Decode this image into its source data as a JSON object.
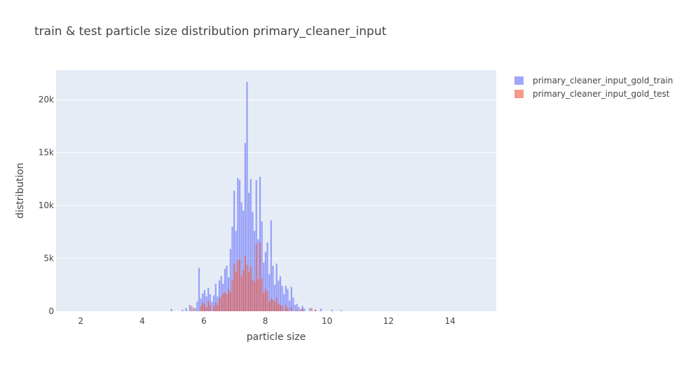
{
  "chart_data": {
    "type": "histogram-overlay",
    "title": "train & test particle size distribution primary_cleaner_input",
    "xlabel": "particle size",
    "ylabel": "distribution",
    "xlim": [
      1.2,
      15.5
    ],
    "ylim": [
      0,
      22800
    ],
    "x_ticks": [
      2,
      4,
      6,
      8,
      10,
      12,
      14
    ],
    "x_tick_labels": [
      "2",
      "4",
      "6",
      "8",
      "10",
      "12",
      "14"
    ],
    "y_ticks": [
      0,
      5000,
      10000,
      15000,
      20000
    ],
    "y_tick_labels": [
      "0",
      "5k",
      "10k",
      "15k",
      "20k"
    ],
    "grid": true,
    "legend": "top-right-outside",
    "bin_width": 0.06,
    "bar_opacity": 0.6,
    "series": [
      {
        "name": "primary_cleaner_input_gold_train",
        "color": "#636efa",
        "bins": [
          [
            4.92,
            200
          ],
          [
            5.28,
            150
          ],
          [
            5.4,
            300
          ],
          [
            5.52,
            600
          ],
          [
            5.64,
            300
          ],
          [
            5.76,
            900
          ],
          [
            5.82,
            4100
          ],
          [
            5.88,
            1200
          ],
          [
            5.94,
            1700
          ],
          [
            6.0,
            2000
          ],
          [
            6.06,
            1400
          ],
          [
            6.12,
            2200
          ],
          [
            6.18,
            1600
          ],
          [
            6.24,
            900
          ],
          [
            6.3,
            1500
          ],
          [
            6.36,
            2600
          ],
          [
            6.42,
            1400
          ],
          [
            6.48,
            2900
          ],
          [
            6.54,
            3300
          ],
          [
            6.6,
            2600
          ],
          [
            6.66,
            4000
          ],
          [
            6.72,
            4300
          ],
          [
            6.78,
            3200
          ],
          [
            6.84,
            5900
          ],
          [
            6.9,
            8000
          ],
          [
            6.96,
            11400
          ],
          [
            7.02,
            7600
          ],
          [
            7.08,
            12600
          ],
          [
            7.14,
            12400
          ],
          [
            7.2,
            10300
          ],
          [
            7.26,
            9500
          ],
          [
            7.32,
            15900
          ],
          [
            7.38,
            21700
          ],
          [
            7.44,
            11200
          ],
          [
            7.5,
            12500
          ],
          [
            7.56,
            9400
          ],
          [
            7.62,
            7600
          ],
          [
            7.68,
            12400
          ],
          [
            7.74,
            6800
          ],
          [
            7.8,
            12700
          ],
          [
            7.86,
            8500
          ],
          [
            7.92,
            4600
          ],
          [
            7.98,
            5600
          ],
          [
            8.04,
            6500
          ],
          [
            8.1,
            3500
          ],
          [
            8.16,
            8600
          ],
          [
            8.22,
            4300
          ],
          [
            8.28,
            2500
          ],
          [
            8.34,
            4500
          ],
          [
            8.4,
            2900
          ],
          [
            8.46,
            3300
          ],
          [
            8.52,
            2400
          ],
          [
            8.58,
            1600
          ],
          [
            8.64,
            2400
          ],
          [
            8.7,
            2100
          ],
          [
            8.76,
            1000
          ],
          [
            8.82,
            2300
          ],
          [
            8.88,
            1300
          ],
          [
            8.94,
            600
          ],
          [
            9.0,
            700
          ],
          [
            9.06,
            400
          ],
          [
            9.12,
            200
          ],
          [
            9.18,
            500
          ],
          [
            9.24,
            250
          ],
          [
            9.42,
            300
          ],
          [
            9.6,
            150
          ],
          [
            9.78,
            250
          ],
          [
            10.14,
            150
          ],
          [
            10.44,
            100
          ]
        ]
      },
      {
        "name": "primary_cleaner_input_gold_test",
        "color": "#ef553b",
        "bins": [
          [
            5.58,
            500
          ],
          [
            5.7,
            300
          ],
          [
            5.88,
            500
          ],
          [
            5.94,
            800
          ],
          [
            6.0,
            700
          ],
          [
            6.06,
            400
          ],
          [
            6.12,
            1000
          ],
          [
            6.18,
            600
          ],
          [
            6.3,
            500
          ],
          [
            6.36,
            800
          ],
          [
            6.42,
            600
          ],
          [
            6.48,
            1200
          ],
          [
            6.54,
            1400
          ],
          [
            6.6,
            1700
          ],
          [
            6.66,
            1800
          ],
          [
            6.72,
            1600
          ],
          [
            6.78,
            2100
          ],
          [
            6.84,
            1800
          ],
          [
            6.9,
            3000
          ],
          [
            6.96,
            4500
          ],
          [
            7.02,
            3700
          ],
          [
            7.08,
            4800
          ],
          [
            7.14,
            4900
          ],
          [
            7.2,
            3300
          ],
          [
            7.26,
            3900
          ],
          [
            7.32,
            5200
          ],
          [
            7.38,
            4400
          ],
          [
            7.44,
            3700
          ],
          [
            7.5,
            4200
          ],
          [
            7.56,
            3000
          ],
          [
            7.62,
            2800
          ],
          [
            7.68,
            6400
          ],
          [
            7.74,
            3000
          ],
          [
            7.8,
            6500
          ],
          [
            7.86,
            3100
          ],
          [
            7.92,
            1700
          ],
          [
            7.98,
            2100
          ],
          [
            8.04,
            1900
          ],
          [
            8.1,
            900
          ],
          [
            8.16,
            1200
          ],
          [
            8.22,
            1100
          ],
          [
            8.28,
            900
          ],
          [
            8.34,
            1300
          ],
          [
            8.4,
            700
          ],
          [
            8.46,
            600
          ],
          [
            8.52,
            500
          ],
          [
            8.64,
            600
          ],
          [
            8.7,
            300
          ],
          [
            8.82,
            400
          ],
          [
            9.0,
            150
          ],
          [
            9.18,
            300
          ],
          [
            9.48,
            300
          ],
          [
            9.6,
            150
          ]
        ]
      }
    ]
  }
}
